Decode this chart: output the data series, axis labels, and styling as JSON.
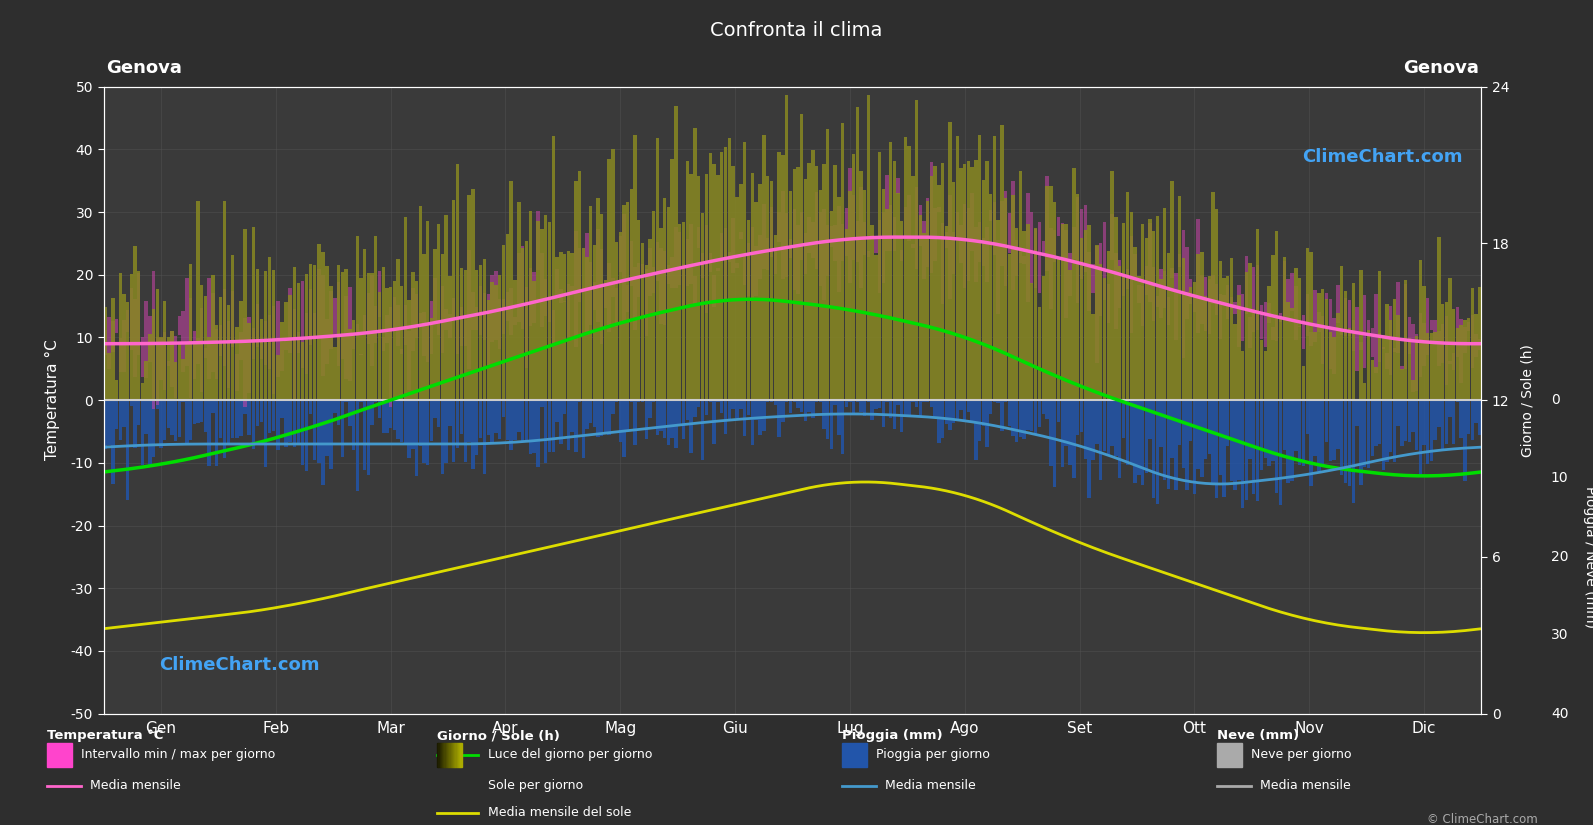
{
  "title": "Confronta il clima",
  "city_left": "Genova",
  "city_right": "Genova",
  "bg_color": "#2e2e2e",
  "plot_bg_color": "#3a3a3a",
  "grid_color": "#555555",
  "text_color": "#ffffff",
  "months": [
    "Gen",
    "Feb",
    "Mar",
    "Apr",
    "Mag",
    "Giu",
    "Lug",
    "Ago",
    "Set",
    "Ott",
    "Nov",
    "Dic"
  ],
  "ylim_left": [
    -50,
    50
  ],
  "temp_min_monthly": [
    5,
    6,
    8,
    11,
    15,
    19,
    22,
    22,
    18,
    13,
    9,
    6
  ],
  "temp_max_monthly": [
    13,
    13,
    15,
    18,
    23,
    27,
    30,
    30,
    26,
    20,
    15,
    12
  ],
  "temp_mean_monthly": [
    9,
    9.5,
    11,
    14.5,
    19,
    23,
    26,
    26,
    22,
    16.5,
    12,
    9
  ],
  "daylight_monthly": [
    9.5,
    10.5,
    12,
    13.5,
    15,
    16,
    15.5,
    14.5,
    12.5,
    11,
    9.5,
    9
  ],
  "sunshine_monthly": [
    3.5,
    4,
    5,
    6,
    7,
    8,
    9,
    8.5,
    6.5,
    5,
    3.5,
    3
  ],
  "rain_monthly_neg": [
    -7,
    -7,
    -7,
    -7,
    -5,
    -3,
    -2,
    -3,
    -7,
    -14,
    -12,
    -8
  ],
  "colors": {
    "green_line": "#00dd00",
    "yellow_line": "#dddd00",
    "pink_line": "#ff66cc",
    "blue_line": "#4499cc",
    "rain_bar": "#2255aa",
    "temp_fill_magenta": "#cc44aa",
    "temp_fill_olive": "#888822"
  },
  "watermark": "ClimeChart.com",
  "copyright": "© ClimeChart.com"
}
